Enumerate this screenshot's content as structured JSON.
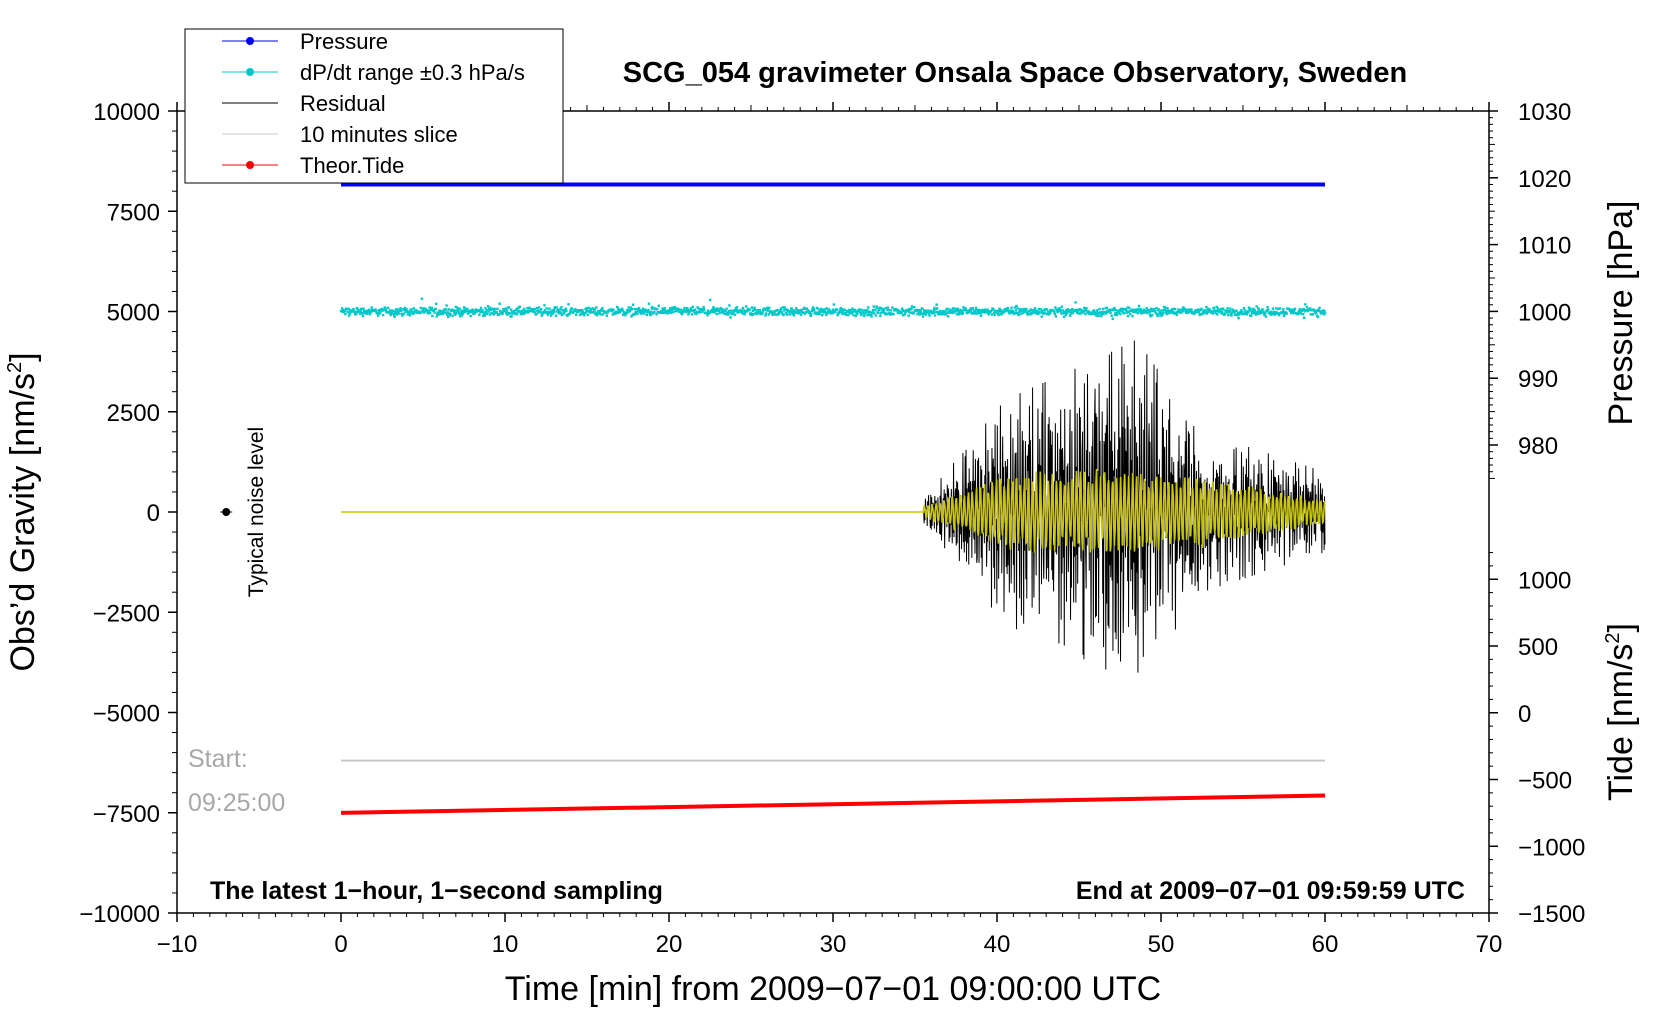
{
  "chart_data": {
    "type": "line",
    "title": "SCG_054 gravimeter Onsala Space Observatory, Sweden",
    "xlabel": "Time [min] from 2009−07−01 09:00:00 UTC",
    "ylabel_left": "Obs’d Gravity [nm/s",
    "ylabel_left_sup": "2",
    "ylabel_left_end": "]",
    "ylabel_right_top": "Pressure [hPa]",
    "ylabel_right_bottom": "Tide [nm/s",
    "ylabel_right_bottom_sup": "2",
    "ylabel_right_bottom_end": "]",
    "xlim": [
      -10,
      70
    ],
    "ylim_left": [
      -10000,
      10000
    ],
    "ylim_pressure": [
      970,
      1030
    ],
    "ylim_tide": [
      -1500,
      1500
    ],
    "x_ticks": [
      "−10",
      "0",
      "10",
      "20",
      "30",
      "40",
      "50",
      "60",
      "70"
    ],
    "y_left_ticks": [
      "10000",
      "7500",
      "5000",
      "2500",
      "0",
      "−2500",
      "−5000",
      "−7500",
      "−10000"
    ],
    "y_pressure_ticks": [
      "1030",
      "1020",
      "1010",
      "1000",
      "990",
      "980"
    ],
    "y_tide_ticks": [
      "1000",
      "500",
      "0",
      "−500",
      "−1000",
      "−1500"
    ],
    "legend": [
      {
        "label": "Pressure",
        "color": "#0000ff",
        "marker": true
      },
      {
        "label": "dP/dt range ±0.3 hPa/s",
        "color": "#00c8c8",
        "marker": true
      },
      {
        "label": "Residual",
        "color": "#000000",
        "marker": false
      },
      {
        "label": "10 minutes slice",
        "color": "#c8c8c8",
        "marker": false
      },
      {
        "label": "Theor.Tide",
        "color": "#ff0000",
        "marker": true
      }
    ],
    "series": [
      {
        "name": "Pressure",
        "axis": "pressure",
        "color": "#0000ff",
        "x": [
          0,
          60
        ],
        "values": [
          1019.0,
          1019.0
        ]
      },
      {
        "name": "dP/dt range ±0.3 hPa/s",
        "axis": "left",
        "color": "#00c8c8",
        "x": [
          0,
          60
        ],
        "center": 5000,
        "spread": 150
      },
      {
        "name": "Residual",
        "axis": "left",
        "color": "#000000",
        "x": [
          0,
          35.5,
          40.5,
          46,
          48.5,
          52.5,
          60
        ],
        "envelope": [
          0,
          300,
          2800,
          3800,
          4300,
          2000,
          1000
        ]
      },
      {
        "name": "Residual (filtered)",
        "axis": "left",
        "color": "#c8c800",
        "x": [
          0,
          35.5,
          40.5,
          46,
          52.5,
          60
        ],
        "envelope": [
          0,
          150,
          1000,
          1100,
          900,
          300
        ]
      },
      {
        "name": "10 minutes slice",
        "axis": "left",
        "color": "#c8c8c8",
        "x": [
          0,
          60
        ],
        "values": [
          -6200,
          -6200
        ]
      },
      {
        "name": "Theor.Tide",
        "axis": "tide",
        "color": "#ff0000",
        "x": [
          0,
          60
        ],
        "values": [
          -750,
          -620
        ]
      }
    ],
    "noise_marker": {
      "x": -7,
      "y": 0,
      "label": "Typical noise level"
    },
    "annotations": {
      "start_label": "Start:",
      "start_time": "09:25:00",
      "bottom_left": "The latest 1−hour, 1−second sampling",
      "bottom_right": "End at 2009−07−01 09:59:59 UTC"
    }
  }
}
